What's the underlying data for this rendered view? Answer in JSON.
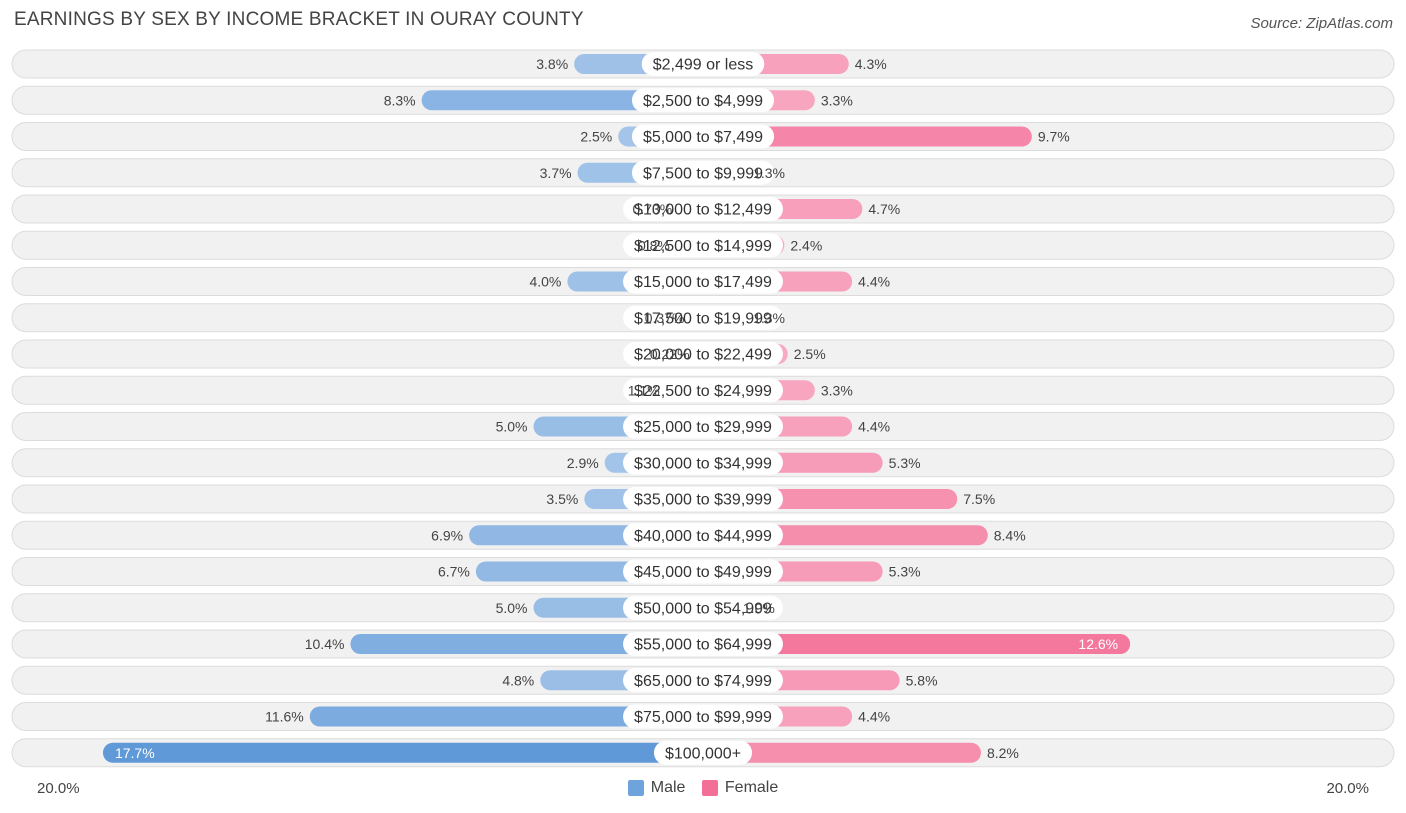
{
  "title": "EARNINGS BY SEX BY INCOME BRACKET IN OURAY COUNTY",
  "source": "Source: ZipAtlas.com",
  "axis": {
    "left_label": "20.0%",
    "right_label": "20.0%"
  },
  "legend": {
    "male_label": "Male",
    "female_label": "Female"
  },
  "colors": {
    "male": "#6fa3dc",
    "female": "#f36f98",
    "row_bg": "#f1f1f1",
    "row_border": "#dcdcdc"
  },
  "chart_data": {
    "type": "bar",
    "orientation": "horizontal-diverging",
    "title": "EARNINGS BY SEX BY INCOME BRACKET IN OURAY COUNTY",
    "xlim": [
      -20,
      20
    ],
    "categories": [
      "$2,499 or less",
      "$2,500 to $4,999",
      "$5,000 to $7,499",
      "$7,500 to $9,999",
      "$10,000 to $12,499",
      "$12,500 to $14,999",
      "$15,000 to $17,499",
      "$17,500 to $19,999",
      "$20,000 to $22,499",
      "$22,500 to $24,999",
      "$25,000 to $29,999",
      "$30,000 to $34,999",
      "$35,000 to $39,999",
      "$40,000 to $44,999",
      "$45,000 to $49,999",
      "$50,000 to $54,999",
      "$55,000 to $64,999",
      "$65,000 to $74,999",
      "$75,000 to $99,999",
      "$100,000+"
    ],
    "series": [
      {
        "name": "Male",
        "values": [
          3.8,
          8.3,
          2.5,
          3.7,
          0.73,
          0.8,
          4.0,
          0.37,
          0.22,
          1.1,
          5.0,
          2.9,
          3.5,
          6.9,
          6.7,
          5.0,
          10.4,
          4.8,
          11.6,
          17.7
        ],
        "labels": [
          "3.8%",
          "8.3%",
          "2.5%",
          "3.7%",
          "0.73%",
          "0.8%",
          "4.0%",
          "0.37%",
          "0.22%",
          "1.1%",
          "5.0%",
          "2.9%",
          "3.5%",
          "6.9%",
          "6.7%",
          "5.0%",
          "10.4%",
          "4.8%",
          "11.6%",
          "17.7%"
        ]
      },
      {
        "name": "Female",
        "values": [
          4.3,
          3.3,
          9.7,
          1.3,
          4.7,
          2.4,
          4.4,
          1.3,
          2.5,
          3.3,
          4.4,
          5.3,
          7.5,
          8.4,
          5.3,
          1.0,
          12.6,
          5.8,
          4.4,
          8.2
        ],
        "labels": [
          "4.3%",
          "3.3%",
          "9.7%",
          "1.3%",
          "4.7%",
          "2.4%",
          "4.4%",
          "1.3%",
          "2.5%",
          "3.3%",
          "4.4%",
          "5.3%",
          "7.5%",
          "8.4%",
          "5.3%",
          "1.0%",
          "12.6%",
          "5.8%",
          "4.4%",
          "8.2%"
        ]
      }
    ],
    "legend_position": "bottom-center"
  }
}
